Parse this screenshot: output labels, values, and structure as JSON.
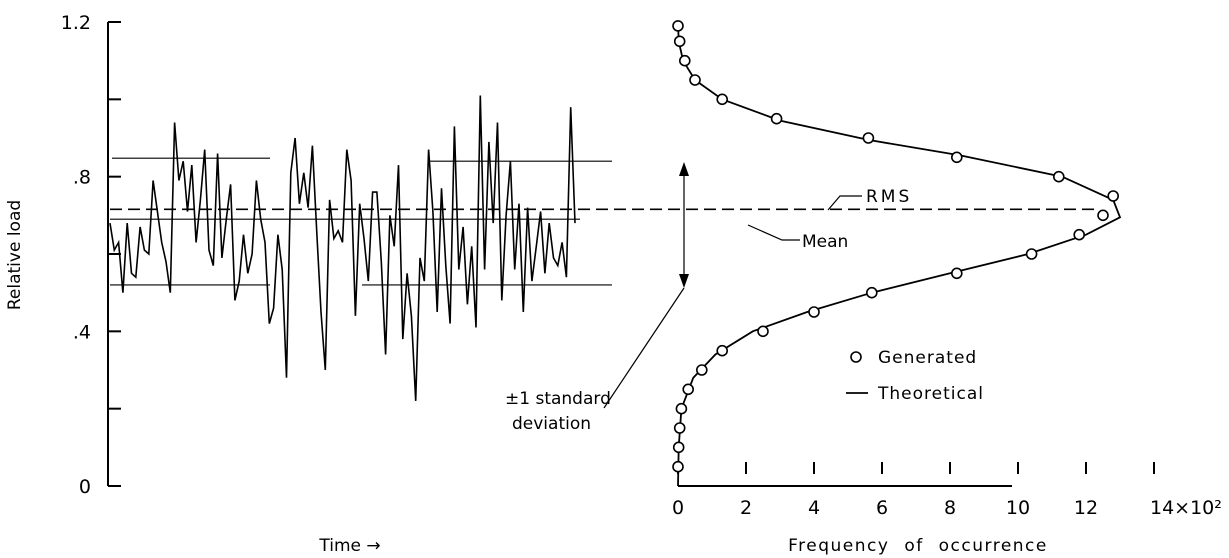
{
  "chart_data": [
    {
      "type": "line",
      "panel": "time-history",
      "ylabel": "Relative load",
      "xlabel": "Time →",
      "ylim": [
        0,
        1.2
      ],
      "y_ticks": [
        {
          "value": 0,
          "label": "0"
        },
        {
          "value": 0.2,
          "label": ""
        },
        {
          "value": 0.4,
          "label": ".4"
        },
        {
          "value": 0.6,
          "label": ""
        },
        {
          "value": 0.8,
          "label": ".8"
        },
        {
          "value": 1.0,
          "label": ""
        },
        {
          "value": 1.2,
          "label": "1.2"
        }
      ],
      "series": [
        {
          "values": [
            0.68,
            0.61,
            0.63,
            0.5,
            0.68,
            0.55,
            0.54,
            0.67,
            0.61,
            0.6,
            0.79,
            0.71,
            0.63,
            0.58,
            0.5,
            0.94,
            0.79,
            0.84,
            0.71,
            0.83,
            0.63,
            0.74,
            0.87,
            0.61,
            0.57,
            0.86,
            0.59,
            0.69,
            0.78,
            0.48,
            0.53,
            0.65,
            0.55,
            0.6,
            0.79,
            0.69,
            0.63,
            0.42,
            0.46,
            0.65,
            0.56,
            0.28,
            0.81,
            0.9,
            0.73,
            0.81,
            0.72,
            0.88,
            0.66,
            0.45,
            0.3,
            0.74,
            0.64,
            0.66,
            0.63,
            0.87,
            0.79,
            0.44,
            0.73,
            0.64,
            0.53,
            0.76,
            0.76,
            0.58,
            0.34,
            0.7,
            0.62,
            0.83,
            0.38,
            0.55,
            0.44,
            0.22,
            0.59,
            0.53,
            0.87,
            0.71,
            0.45,
            0.77,
            0.57,
            0.42,
            0.93,
            0.56,
            0.67,
            0.47,
            0.62,
            0.41,
            1.01,
            0.56,
            0.89,
            0.68,
            0.94,
            0.48,
            0.7,
            0.84,
            0.56,
            0.73,
            0.45,
            0.72,
            0.53,
            0.62,
            0.71,
            0.55,
            0.68,
            0.59,
            0.57,
            0.63,
            0.54,
            0.98,
            0.68
          ]
        }
      ],
      "reference_lines": {
        "mean": 0.69,
        "rms": 0.7,
        "plus_one_sd": 0.84,
        "minus_one_sd": 0.52
      },
      "annotations": {
        "rms_label": "RMS",
        "mean_label": "Mean",
        "std_label_line1": "±1 standard",
        "std_label_line2": "deviation"
      }
    },
    {
      "type": "line",
      "panel": "frequency-distribution",
      "xlabel": "Frequency of occurrence",
      "xlim": [
        0,
        14
      ],
      "x_ticks": [
        {
          "value": 0,
          "label": "0"
        },
        {
          "value": 2,
          "label": "2"
        },
        {
          "value": 4,
          "label": "4"
        },
        {
          "value": 6,
          "label": "6"
        },
        {
          "value": 8,
          "label": "8"
        },
        {
          "value": 10,
          "label": "10"
        },
        {
          "value": 12,
          "label": "12"
        },
        {
          "value": 14,
          "label": "14×10²"
        }
      ],
      "ylim": [
        0,
        1.2
      ],
      "series": [
        {
          "name": "Generated",
          "style": "circles",
          "points": [
            {
              "x": 0.0,
              "y": 0.05
            },
            {
              "x": 0.02,
              "y": 0.1
            },
            {
              "x": 0.05,
              "y": 0.15
            },
            {
              "x": 0.1,
              "y": 0.2
            },
            {
              "x": 0.3,
              "y": 0.25
            },
            {
              "x": 0.7,
              "y": 0.3
            },
            {
              "x": 1.3,
              "y": 0.35
            },
            {
              "x": 2.5,
              "y": 0.4
            },
            {
              "x": 4.0,
              "y": 0.45
            },
            {
              "x": 5.7,
              "y": 0.5
            },
            {
              "x": 8.2,
              "y": 0.55
            },
            {
              "x": 10.4,
              "y": 0.6
            },
            {
              "x": 11.8,
              "y": 0.65
            },
            {
              "x": 12.5,
              "y": 0.7
            },
            {
              "x": 12.8,
              "y": 0.75
            },
            {
              "x": 11.2,
              "y": 0.8
            },
            {
              "x": 8.2,
              "y": 0.85
            },
            {
              "x": 5.6,
              "y": 0.9
            },
            {
              "x": 2.9,
              "y": 0.95
            },
            {
              "x": 1.3,
              "y": 1.0
            },
            {
              "x": 0.5,
              "y": 1.05
            },
            {
              "x": 0.2,
              "y": 1.1
            },
            {
              "x": 0.05,
              "y": 1.15
            },
            {
              "x": 0.0,
              "y": 1.19
            }
          ]
        },
        {
          "name": "Theoretical",
          "style": "line",
          "points": [
            {
              "x": 0.0,
              "y": 0.0
            },
            {
              "x": 0.02,
              "y": 0.1
            },
            {
              "x": 0.1,
              "y": 0.2
            },
            {
              "x": 0.45,
              "y": 0.28
            },
            {
              "x": 1.1,
              "y": 0.34
            },
            {
              "x": 2.2,
              "y": 0.4
            },
            {
              "x": 3.8,
              "y": 0.45
            },
            {
              "x": 5.7,
              "y": 0.5
            },
            {
              "x": 8.0,
              "y": 0.55
            },
            {
              "x": 10.3,
              "y": 0.6
            },
            {
              "x": 12.0,
              "y": 0.65
            },
            {
              "x": 13.0,
              "y": 0.695
            },
            {
              "x": 12.8,
              "y": 0.74
            },
            {
              "x": 11.3,
              "y": 0.8
            },
            {
              "x": 8.3,
              "y": 0.855
            },
            {
              "x": 5.6,
              "y": 0.895
            },
            {
              "x": 3.0,
              "y": 0.945
            },
            {
              "x": 1.3,
              "y": 1.0
            },
            {
              "x": 0.5,
              "y": 1.05
            },
            {
              "x": 0.15,
              "y": 1.1
            },
            {
              "x": 0.02,
              "y": 1.15
            },
            {
              "x": 0.0,
              "y": 1.2
            }
          ]
        }
      ],
      "legend": {
        "generated_label": "Generated",
        "theoretical_label": "Theoretical"
      }
    }
  ]
}
